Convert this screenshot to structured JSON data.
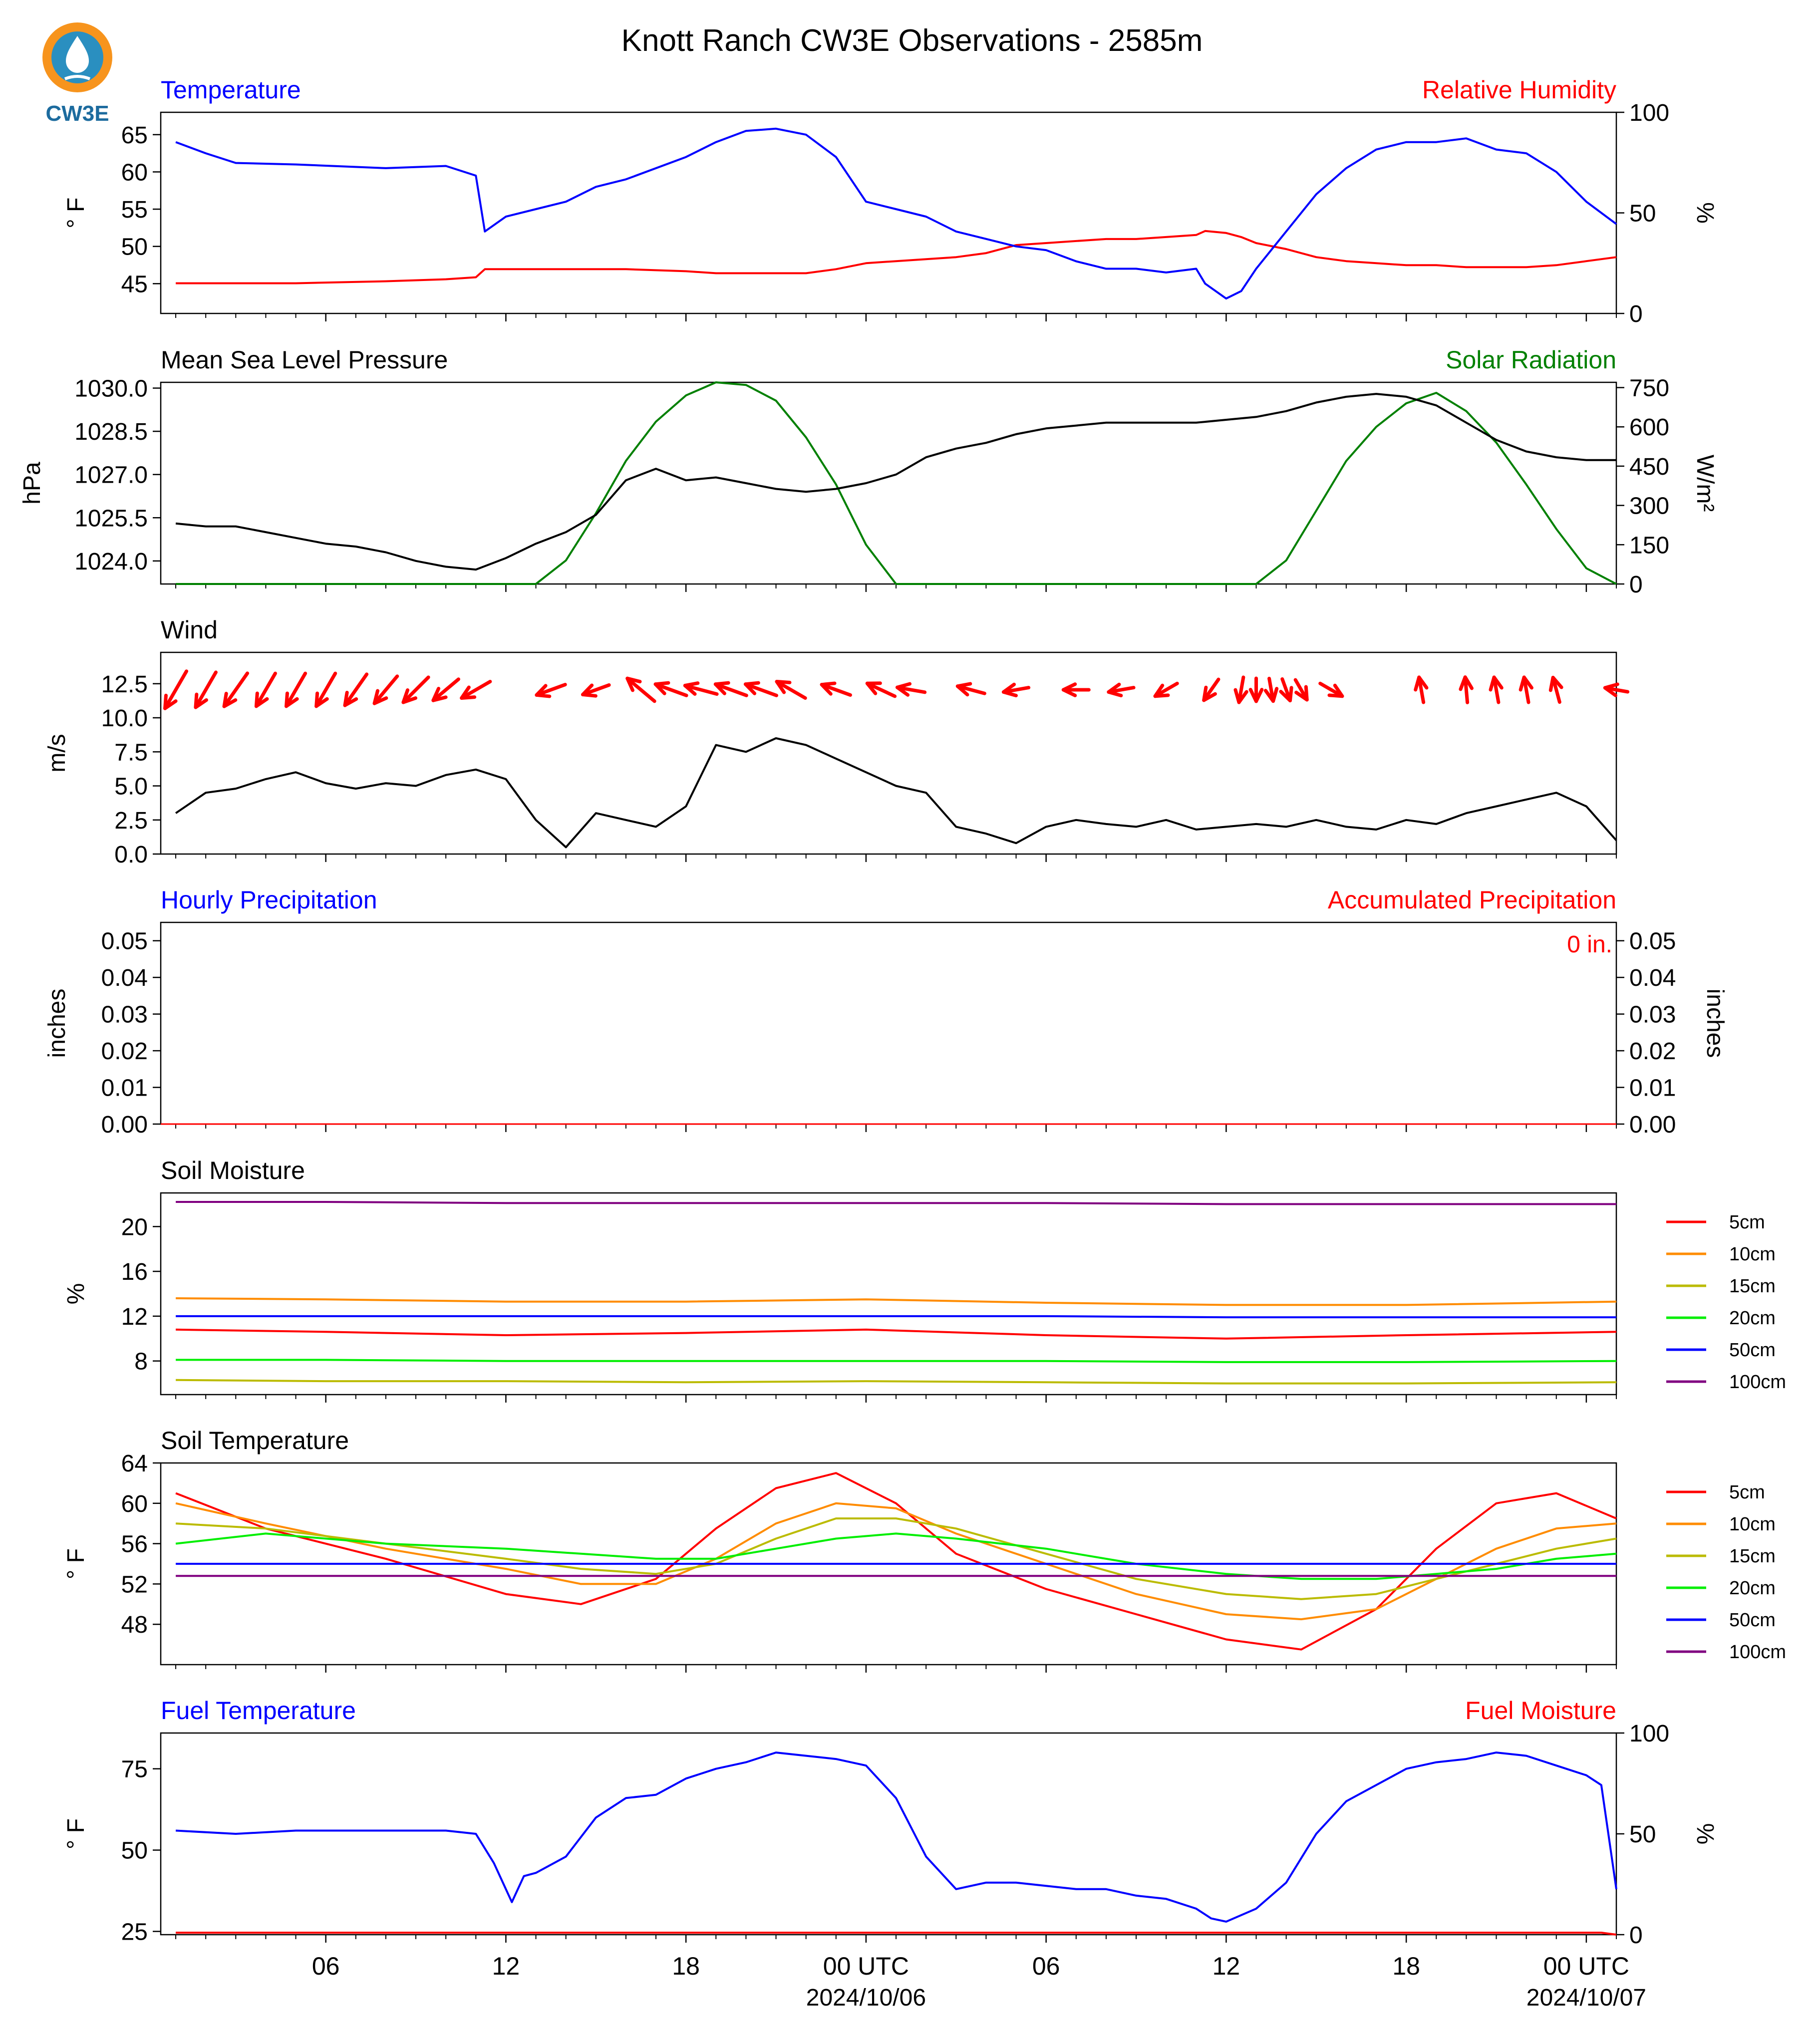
{
  "title": "Knott Ranch CW3E Observations - 2585m",
  "logo": {
    "text": "CW3E",
    "icon": "cw3e-drop-logo",
    "colors": [
      "#f7941d",
      "#2a8fc0",
      "#1c6b9e"
    ]
  },
  "colors": {
    "blue": "#0000ff",
    "red": "#ff0000",
    "green": "#008000",
    "black": "#000000",
    "orange": "#ff8c00",
    "yellowgreen": "#bbbb00",
    "lime": "#00ee00",
    "purple": "#800080"
  },
  "time_axis": {
    "ticks": [
      "06",
      "12",
      "18",
      "00 UTC",
      "06",
      "12",
      "18",
      "00 UTC"
    ],
    "dates": [
      "2024/10/06",
      "2024/10/07"
    ]
  },
  "chart_data": [
    {
      "type": "line",
      "panel": "temperature",
      "title_left": "Temperature",
      "title_right": "Relative Humidity",
      "ylabel": "° F",
      "ylabel2": "%",
      "ylim": [
        41,
        68
      ],
      "ylim2": [
        0,
        100
      ],
      "yticks": [
        "45",
        "50",
        "55",
        "60",
        "65"
      ],
      "yticks2": [
        "0",
        "50",
        "100"
      ],
      "x_hours": [
        1,
        2,
        3,
        5,
        8,
        10,
        11,
        11.3,
        12,
        13,
        14,
        15,
        16,
        18,
        19,
        20,
        21,
        22,
        23,
        24,
        25,
        26,
        27,
        28,
        29,
        30,
        31,
        32,
        33,
        34,
        35,
        35.3,
        36,
        36.5,
        37,
        38,
        39,
        40,
        41,
        42,
        43,
        44,
        45,
        46,
        47,
        48,
        49
      ],
      "series": [
        {
          "name": "Temperature",
          "values": [
            64.0,
            62.5,
            61.2,
            61.0,
            60.5,
            60.8,
            59.5,
            52.0,
            54.0,
            55.0,
            56.0,
            58.0,
            59.0,
            62.0,
            64.0,
            65.5,
            65.8,
            65.0,
            62.0,
            56.0,
            55.0,
            54.0,
            52.0,
            51.0,
            50.0,
            49.5,
            48.0,
            47.0,
            47.0,
            46.5,
            47.0,
            45.0,
            43.0,
            44.0,
            47.0,
            52.0,
            57.0,
            60.5,
            63.0,
            64.0,
            64.0,
            64.5,
            63.0,
            62.5,
            60.0,
            56.0,
            53.0
          ]
        },
        {
          "name": "Relative Humidity",
          "values": [
            15,
            15,
            15,
            15,
            16,
            17,
            18,
            22,
            22,
            22,
            22,
            22,
            22,
            21,
            20,
            20,
            20,
            20,
            22,
            25,
            26,
            27,
            28,
            30,
            34,
            35,
            36,
            37,
            37,
            38,
            39,
            41,
            40,
            38,
            35,
            32,
            28,
            26,
            25,
            24,
            24,
            23,
            23,
            23,
            24,
            26,
            28
          ]
        }
      ]
    },
    {
      "type": "line",
      "panel": "pressure",
      "title_left": "Mean Sea Level Pressure",
      "title_right": "Solar Radiation",
      "ylabel": "hPa",
      "ylabel2": "W/m²",
      "ylim": [
        1023.2,
        1030.2
      ],
      "ylim2": [
        0,
        770
      ],
      "yticks": [
        "1024.0",
        "1025.5",
        "1027.0",
        "1028.5",
        "1030.0"
      ],
      "yticks2": [
        "0",
        "150",
        "300",
        "450",
        "600",
        "750"
      ],
      "x_hours": [
        1,
        2,
        3,
        4,
        5,
        6,
        7,
        8,
        9,
        10,
        11,
        12,
        13,
        14,
        15,
        16,
        17,
        18,
        19,
        20,
        21,
        22,
        23,
        24,
        25,
        26,
        27,
        28,
        29,
        30,
        31,
        32,
        33,
        34,
        35,
        36,
        37,
        38,
        39,
        40,
        41,
        42,
        43,
        44,
        45,
        46,
        47,
        48,
        49
      ],
      "series": [
        {
          "name": "Mean Sea Level Pressure",
          "values": [
            1025.3,
            1025.2,
            1025.2,
            1025.0,
            1024.8,
            1024.6,
            1024.5,
            1024.3,
            1024.0,
            1023.8,
            1023.7,
            1024.1,
            1024.6,
            1025.0,
            1025.6,
            1026.8,
            1027.2,
            1026.8,
            1026.9,
            1026.7,
            1026.5,
            1026.4,
            1026.5,
            1026.7,
            1027.0,
            1027.6,
            1027.9,
            1028.1,
            1028.4,
            1028.6,
            1028.7,
            1028.8,
            1028.8,
            1028.8,
            1028.8,
            1028.9,
            1029.0,
            1029.2,
            1029.5,
            1029.7,
            1029.8,
            1029.7,
            1029.4,
            1028.8,
            1028.2,
            1027.8,
            1027.6,
            1027.5,
            1027.5
          ]
        },
        {
          "name": "Solar Radiation",
          "values": [
            0,
            0,
            0,
            0,
            0,
            0,
            0,
            0,
            0,
            0,
            0,
            0,
            0,
            90,
            270,
            470,
            620,
            720,
            770,
            760,
            700,
            560,
            380,
            150,
            0,
            0,
            0,
            0,
            0,
            0,
            0,
            0,
            0,
            0,
            0,
            0,
            0,
            90,
            280,
            470,
            600,
            690,
            730,
            660,
            540,
            380,
            210,
            60,
            0
          ]
        }
      ]
    },
    {
      "type": "line",
      "panel": "wind",
      "title_left": "Wind",
      "ylabel": "m/s",
      "ylim": [
        0,
        14.8
      ],
      "yticks": [
        "0.0",
        "2.5",
        "5.0",
        "7.5",
        "10.0",
        "12.5"
      ],
      "x_hours": [
        1,
        2,
        3,
        4,
        5,
        6,
        7,
        8,
        9,
        10,
        11,
        12,
        13,
        14,
        15,
        16,
        17,
        18,
        19,
        20,
        21,
        22,
        23,
        24,
        25,
        26,
        27,
        28,
        29,
        30,
        31,
        32,
        33,
        34,
        35,
        36,
        37,
        38,
        39,
        40,
        41,
        42,
        43,
        44,
        45,
        46,
        47,
        48,
        49
      ],
      "series": [
        {
          "name": "Wind Speed",
          "values": [
            3.0,
            4.5,
            4.8,
            5.5,
            6.0,
            5.2,
            4.8,
            5.2,
            5.0,
            5.8,
            6.2,
            5.5,
            2.5,
            0.5,
            3.0,
            2.5,
            2.0,
            3.5,
            8.0,
            7.5,
            8.5,
            8.0,
            7.0,
            6.0,
            5.0,
            4.5,
            2.0,
            1.5,
            0.8,
            2.0,
            2.5,
            2.2,
            2.0,
            2.5,
            1.8,
            2.0,
            2.2,
            2.0,
            2.5,
            2.0,
            1.8,
            2.5,
            2.2,
            3.0,
            3.5,
            4.0,
            4.5,
            3.5,
            1.0
          ]
        }
      ],
      "barbs": {
        "x_hours": [
          1,
          2,
          3,
          4,
          5,
          6,
          7,
          8,
          9,
          10,
          11,
          13.5,
          15,
          16.5,
          17.5,
          18.5,
          19.5,
          20.5,
          21.5,
          23,
          24.5,
          25.5,
          27.5,
          29,
          31,
          32.5,
          34,
          35.5,
          36.5,
          37,
          37.5,
          38,
          38.5,
          39.5,
          42.5,
          44,
          45,
          46,
          47,
          49
        ],
        "dir_deg": [
          30,
          30,
          35,
          30,
          30,
          30,
          35,
          40,
          45,
          50,
          60,
          70,
          70,
          130,
          110,
          105,
          110,
          110,
          120,
          110,
          115,
          100,
          105,
          80,
          90,
          80,
          60,
          35,
          10,
          0,
          350,
          340,
          330,
          300,
          170,
          175,
          170,
          170,
          165,
          100
        ],
        "speed": [
          12,
          11,
          11,
          10,
          10,
          10,
          10,
          9,
          9,
          8,
          8,
          7,
          6,
          9,
          8,
          8,
          8,
          8,
          8,
          7,
          7,
          6,
          6,
          5,
          5,
          5,
          5,
          5,
          5,
          4,
          4,
          4,
          4,
          5,
          5,
          5,
          5,
          5,
          5,
          4
        ]
      }
    },
    {
      "type": "line",
      "panel": "precipitation",
      "title_left": "Hourly Precipitation",
      "title_right": "Accumulated Precipitation",
      "ylabel": "inches",
      "ylabel2": "inches",
      "ylim": [
        0,
        0.055
      ],
      "ylim2": [
        0,
        0.055
      ],
      "yticks": [
        "0.00",
        "0.01",
        "0.02",
        "0.03",
        "0.04",
        "0.05"
      ],
      "yticks2": [
        "0.00",
        "0.01",
        "0.02",
        "0.03",
        "0.04",
        "0.05"
      ],
      "annotation": "0 in.",
      "x_hours": [
        0.5,
        49
      ],
      "series": [
        {
          "name": "Hourly Precipitation",
          "values": [
            0,
            0
          ]
        },
        {
          "name": "Accumulated Precipitation",
          "values": [
            0,
            0
          ]
        }
      ]
    },
    {
      "type": "line",
      "panel": "soil_moisture",
      "title_left": "Soil Moisture",
      "ylabel": "%",
      "ylim": [
        5,
        23
      ],
      "yticks": [
        "8",
        "12",
        "16",
        "20"
      ],
      "x_hours": [
        1,
        6,
        12,
        18,
        24,
        30,
        36,
        42,
        49
      ],
      "series": [
        {
          "name": "5cm",
          "values": [
            10.8,
            10.6,
            10.3,
            10.5,
            10.8,
            10.3,
            10.0,
            10.3,
            10.6
          ]
        },
        {
          "name": "10cm",
          "values": [
            13.6,
            13.5,
            13.3,
            13.3,
            13.5,
            13.2,
            13.0,
            13.0,
            13.3
          ]
        },
        {
          "name": "15cm",
          "values": [
            6.3,
            6.2,
            6.2,
            6.1,
            6.2,
            6.1,
            6.0,
            6.0,
            6.1
          ]
        },
        {
          "name": "20cm",
          "values": [
            8.1,
            8.1,
            8.0,
            8.0,
            8.0,
            8.0,
            7.9,
            7.9,
            8.0
          ]
        },
        {
          "name": "50cm",
          "values": [
            12.0,
            12.0,
            12.0,
            12.0,
            12.0,
            12.0,
            11.9,
            11.9,
            11.9
          ]
        },
        {
          "name": "100cm",
          "values": [
            22.2,
            22.2,
            22.1,
            22.1,
            22.1,
            22.1,
            22.0,
            22.0,
            22.0
          ]
        }
      ],
      "legend": [
        "5cm",
        "10cm",
        "15cm",
        "20cm",
        "50cm",
        "100cm"
      ]
    },
    {
      "type": "line",
      "panel": "soil_temperature",
      "title_left": "Soil Temperature",
      "ylabel": "° F",
      "ylim": [
        44,
        64
      ],
      "yticks": [
        "48",
        "52",
        "56",
        "60",
        "64"
      ],
      "x_hours": [
        1,
        4,
        8,
        12,
        14.5,
        17,
        19,
        21,
        23,
        25,
        27,
        30,
        33,
        36,
        38.5,
        41,
        43,
        45,
        47,
        49
      ],
      "series": [
        {
          "name": "5cm",
          "values": [
            61.0,
            57.5,
            54.5,
            51.0,
            50.0,
            52.5,
            57.5,
            61.5,
            63.0,
            60.0,
            55.0,
            51.5,
            49.0,
            46.5,
            45.5,
            49.5,
            55.5,
            60.0,
            61.0,
            58.5
          ]
        },
        {
          "name": "10cm",
          "values": [
            60.0,
            58.0,
            55.5,
            53.5,
            52.0,
            52.0,
            54.5,
            58.0,
            60.0,
            59.5,
            57.0,
            54.0,
            51.0,
            49.0,
            48.5,
            49.5,
            52.5,
            55.5,
            57.5,
            58.0
          ]
        },
        {
          "name": "15cm",
          "values": [
            58.0,
            57.5,
            56.0,
            54.5,
            53.5,
            53.0,
            54.0,
            56.5,
            58.5,
            58.5,
            57.5,
            55.0,
            52.5,
            51.0,
            50.5,
            51.0,
            52.5,
            54.0,
            55.5,
            56.5
          ]
        },
        {
          "name": "20cm",
          "values": [
            56.0,
            57.0,
            56.0,
            55.5,
            55.0,
            54.5,
            54.5,
            55.5,
            56.5,
            57.0,
            56.5,
            55.5,
            54.0,
            53.0,
            52.5,
            52.5,
            53.0,
            53.5,
            54.5,
            55.0
          ]
        },
        {
          "name": "50cm",
          "values": [
            54.0,
            54.0,
            54.0,
            54.0,
            54.0,
            54.0,
            54.0,
            54.0,
            54.0,
            54.0,
            54.0,
            54.0,
            54.0,
            54.0,
            54.0,
            54.0,
            54.0,
            54.0,
            54.0,
            54.0
          ]
        },
        {
          "name": "100cm",
          "values": [
            52.8,
            52.8,
            52.8,
            52.8,
            52.8,
            52.8,
            52.8,
            52.8,
            52.8,
            52.8,
            52.8,
            52.8,
            52.8,
            52.8,
            52.8,
            52.8,
            52.8,
            52.8,
            52.8,
            52.8
          ]
        }
      ],
      "legend": [
        "5cm",
        "10cm",
        "15cm",
        "20cm",
        "50cm",
        "100cm"
      ]
    },
    {
      "type": "line",
      "panel": "fuel",
      "title_left": "Fuel Temperature",
      "title_right": "Fuel Moisture",
      "ylabel": "° F",
      "ylabel2": "%",
      "ylim": [
        24,
        86
      ],
      "ylim2": [
        0,
        100
      ],
      "yticks": [
        "25",
        "50",
        "75"
      ],
      "yticks2": [
        "0",
        "50",
        "100"
      ],
      "x_hours": [
        1,
        3,
        5,
        8,
        10,
        11,
        11.6,
        12.2,
        12.6,
        13,
        14,
        15,
        16,
        17,
        18,
        19,
        20,
        21,
        22,
        23,
        24,
        25,
        26,
        27,
        28,
        29,
        30,
        31,
        32,
        33,
        34,
        35,
        35.5,
        36,
        37,
        38,
        39,
        40,
        41,
        42,
        43,
        44,
        45,
        46,
        47,
        48,
        48.5,
        49
      ],
      "series": [
        {
          "name": "Fuel Temperature",
          "values": [
            56,
            55,
            56,
            56,
            56,
            55,
            46,
            34,
            42,
            43,
            48,
            60,
            66,
            67,
            72,
            75,
            77,
            80,
            79,
            78,
            76,
            66,
            48,
            38,
            40,
            40,
            39,
            38,
            38,
            36,
            35,
            32,
            29,
            28,
            32,
            40,
            55,
            65,
            70,
            75,
            77,
            78,
            80,
            79,
            76,
            73,
            70,
            38
          ]
        },
        {
          "name": "Fuel Moisture",
          "values": [
            1,
            1,
            1,
            1,
            1,
            1,
            1,
            1,
            1,
            1,
            1,
            1,
            1,
            1,
            1,
            1,
            1,
            1,
            1,
            1,
            1,
            1,
            1,
            1,
            1,
            1,
            1,
            1,
            1,
            1,
            1,
            1,
            1,
            1,
            1,
            1,
            1,
            1,
            1,
            1,
            1,
            1,
            1,
            1,
            1,
            1,
            1,
            0
          ]
        }
      ]
    }
  ]
}
